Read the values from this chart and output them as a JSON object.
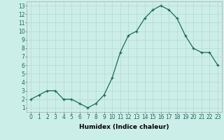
{
  "x": [
    0,
    1,
    2,
    3,
    4,
    5,
    6,
    7,
    8,
    9,
    10,
    11,
    12,
    13,
    14,
    15,
    16,
    17,
    18,
    19,
    20,
    21,
    22,
    23
  ],
  "y": [
    2,
    2.5,
    3,
    3,
    2,
    2,
    1.5,
    1,
    1.5,
    2.5,
    4.5,
    7.5,
    9.5,
    10,
    11.5,
    12.5,
    13,
    12.5,
    11.5,
    9.5,
    8,
    7.5,
    7.5,
    6
  ],
  "line_color": "#1a6b5a",
  "marker": "+",
  "marker_size": 3,
  "bg_color": "#cceee8",
  "grid_color": "#b8d8d0",
  "xlabel": "Humidex (Indice chaleur)",
  "xlabel_weight": "bold",
  "xlim": [
    -0.5,
    23.5
  ],
  "ylim": [
    0.5,
    13.5
  ],
  "xticks": [
    0,
    1,
    2,
    3,
    4,
    5,
    6,
    7,
    8,
    9,
    10,
    11,
    12,
    13,
    14,
    15,
    16,
    17,
    18,
    19,
    20,
    21,
    22,
    23
  ],
  "yticks": [
    1,
    2,
    3,
    4,
    5,
    6,
    7,
    8,
    9,
    10,
    11,
    12,
    13
  ],
  "tick_label_size": 5.5,
  "xlabel_size": 6.5,
  "spine_color": "#aaaaaa"
}
